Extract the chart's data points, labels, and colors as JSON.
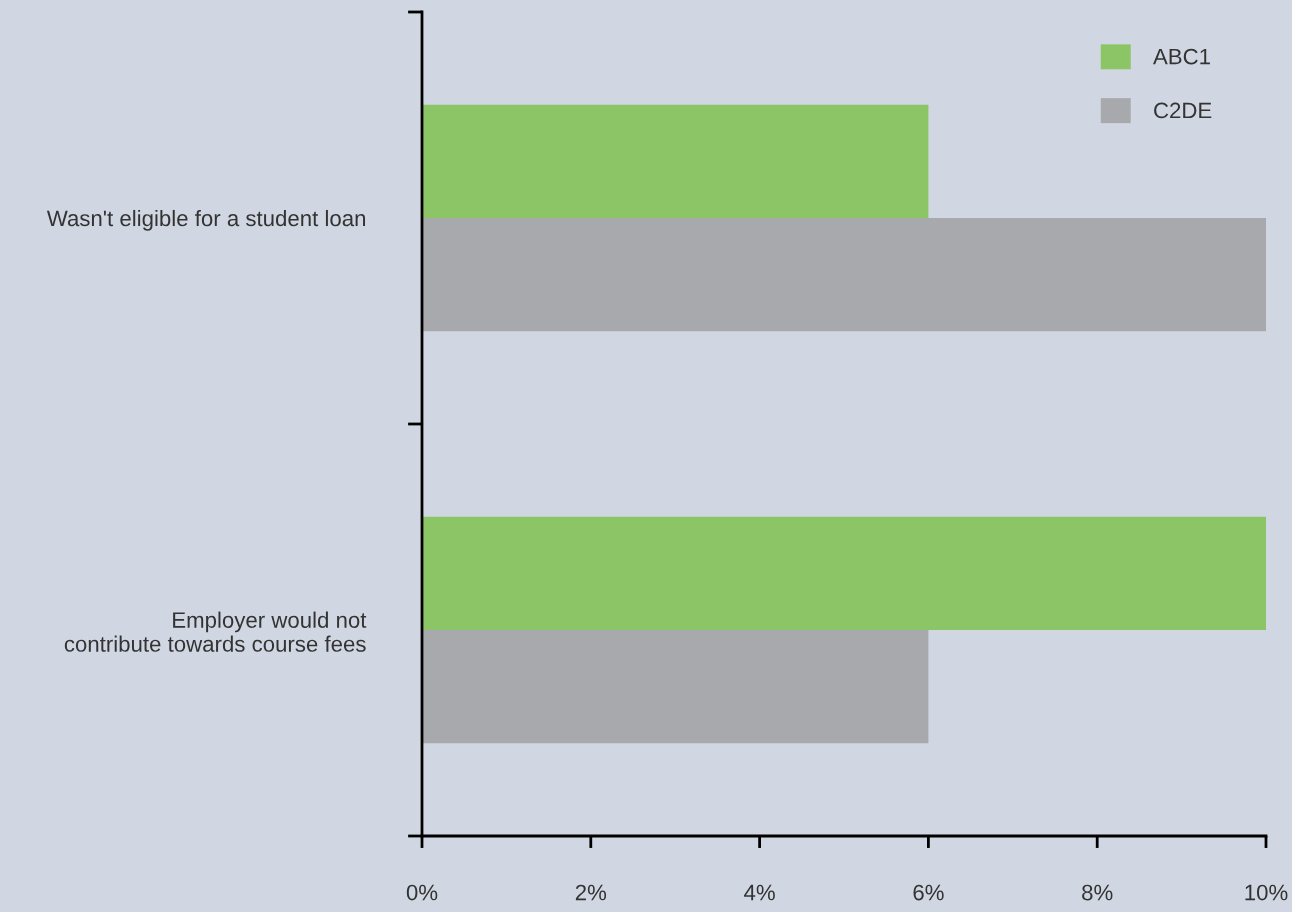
{
  "chart_data": {
    "type": "bar",
    "orientation": "horizontal",
    "categories": [
      "Wasn't eligible for a student loan",
      "Employer would not\ncontribute towards course fees"
    ],
    "series": [
      {
        "name": "ABC1",
        "color": "#8bc565",
        "values": [
          6,
          10
        ]
      },
      {
        "name": "C2DE",
        "color": "#a7a9ac",
        "values": [
          10,
          6
        ]
      }
    ],
    "xlim": [
      0,
      10
    ],
    "xticks": [
      {
        "value": 0,
        "label": "0%"
      },
      {
        "value": 2,
        "label": "2%"
      },
      {
        "value": 4,
        "label": "4%"
      },
      {
        "value": 6,
        "label": "6%"
      },
      {
        "value": 8,
        "label": "8%"
      },
      {
        "value": 10,
        "label": "10%"
      }
    ],
    "legend": "top right",
    "grid": false
  }
}
